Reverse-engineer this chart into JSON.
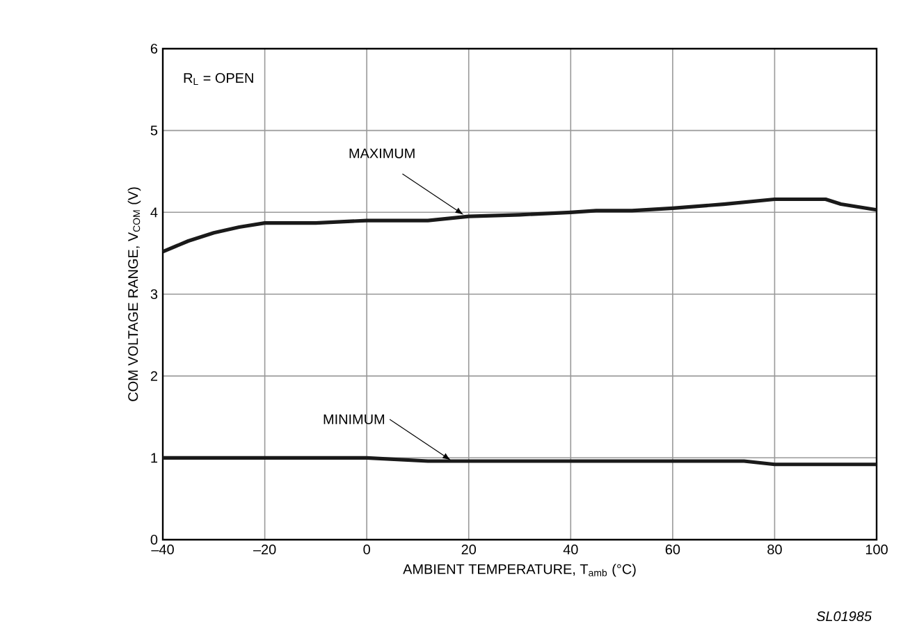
{
  "chart_data": {
    "type": "line",
    "xlabel": "AMBIENT TEMPERATURE, T$_{amb}$ (°C)",
    "ylabel": "COM VOLTAGE RANGE, V$_{COM}$ (V)",
    "x": [
      -40,
      -35,
      -30,
      -25,
      -20,
      -10,
      0,
      12,
      20,
      30,
      40,
      45,
      52,
      60,
      70,
      80,
      90,
      93,
      100
    ],
    "series": [
      {
        "color": "#1a1a1a",
        "values": [
          3.52,
          3.65,
          3.75,
          3.82,
          3.87,
          3.87,
          3.9,
          3.9,
          3.95,
          3.97,
          4.0,
          4.02,
          4.02,
          4.05,
          4.1,
          4.16,
          4.16,
          4.1,
          4.03
        ]
      },
      {
        "color": "#1a1a1a",
        "x": [
          -40,
          0,
          12,
          74,
          80,
          100
        ],
        "values": [
          1.0,
          1.0,
          0.96,
          0.96,
          0.92,
          0.92
        ]
      }
    ],
    "xlim": [
      -40,
      100
    ],
    "ylim": [
      0,
      6
    ],
    "xticks": [
      {
        "value": -40,
        "label": "–40"
      },
      {
        "value": -20,
        "label": "–20"
      },
      0,
      20,
      40,
      60,
      80,
      100
    ],
    "yticks": [
      0,
      1,
      2,
      3,
      4,
      5,
      6
    ],
    "grid": true,
    "marker": "none",
    "line_style": "solid",
    "annotations": [
      "R$_{L}$ = OPEN",
      {
        "text": "MAXIMUM",
        "x": 19,
        "y": 3.97
      },
      {
        "text": "MINIMUM",
        "x": 16.5,
        "y": 0.97
      },
      "SL01985"
    ]
  }
}
